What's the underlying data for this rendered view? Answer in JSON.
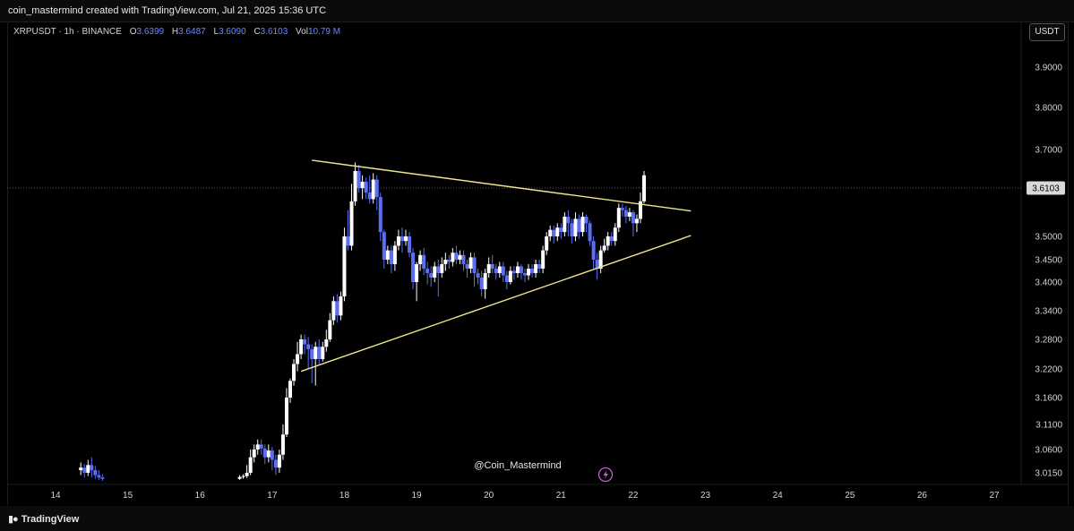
{
  "header": {
    "attribution": "coin_mastermind created with TradingView.com, Jul 21, 2025 15:36 UTC"
  },
  "legend": {
    "symbol": "XRPUSDT · 1h · BINANCE",
    "open_label": "O",
    "open": "3.6399",
    "high_label": "H",
    "high": "3.6487",
    "low_label": "L",
    "low": "3.6090",
    "close_label": "C",
    "close": "3.6103",
    "vol_label": "Vol",
    "vol": "10.79 M"
  },
  "currency_button": "USDT",
  "watermark": "@Coin_Mastermind",
  "footer": {
    "brand": "TradingView",
    "brand_icon": "tradingview-logo-icon"
  },
  "colors": {
    "background": "#000000",
    "up_candle": "#ffffff",
    "down_candle": "#5b6ef5",
    "trendline": "#f0e68c",
    "last_price_label": "#d9d9d9",
    "flash_icon": "#c060d0"
  },
  "chart_data": {
    "type": "candlestick",
    "interval": "1h",
    "x_ticks": [
      "14",
      "15",
      "16",
      "17",
      "18",
      "19",
      "20",
      "21",
      "22",
      "23",
      "24",
      "25",
      "26",
      "27"
    ],
    "y_ticks": [
      "3.0150",
      "3.0600",
      "3.1100",
      "3.1600",
      "3.2200",
      "3.2800",
      "3.3400",
      "3.4000",
      "3.4500",
      "3.5000",
      "3.6103",
      "3.7000",
      "3.8000",
      "3.9000"
    ],
    "last_price": "3.6103",
    "ylim": [
      3.0,
      3.96
    ],
    "xlim": [
      13.85,
      27.4
    ],
    "grid": false,
    "trendlines": [
      {
        "name": "upper",
        "x": [
          17.55,
          22.8
        ],
        "y": [
          3.675,
          3.558
        ]
      },
      {
        "name": "lower",
        "x": [
          17.4,
          22.8
        ],
        "y": [
          3.215,
          3.502
        ]
      }
    ],
    "candles": [
      [
        14.35,
        3.02,
        3.025,
        3.01,
        3.035
      ],
      [
        14.4,
        3.025,
        3.015,
        3.005,
        3.032
      ],
      [
        14.45,
        3.015,
        3.03,
        3.008,
        3.04
      ],
      [
        14.5,
        3.03,
        3.02,
        3.005,
        3.045
      ],
      [
        14.55,
        3.02,
        3.01,
        3.002,
        3.028
      ],
      [
        14.6,
        3.01,
        3.005,
        3.0,
        3.02
      ],
      [
        14.65,
        3.005,
        3.002,
        2.998,
        3.012
      ],
      [
        16.55,
        3.002,
        3.006,
        3.0,
        3.01
      ],
      [
        16.6,
        3.006,
        3.008,
        3.002,
        3.012
      ],
      [
        16.65,
        3.008,
        3.015,
        3.004,
        3.03
      ],
      [
        16.7,
        3.015,
        3.045,
        3.01,
        3.06
      ],
      [
        16.75,
        3.045,
        3.06,
        3.035,
        3.07
      ],
      [
        16.8,
        3.06,
        3.07,
        3.05,
        3.08
      ],
      [
        16.85,
        3.07,
        3.062,
        3.05,
        3.08
      ],
      [
        16.9,
        3.062,
        3.045,
        3.032,
        3.07
      ],
      [
        16.95,
        3.045,
        3.058,
        3.035,
        3.07
      ],
      [
        17.0,
        3.058,
        3.04,
        3.02,
        3.065
      ],
      [
        17.05,
        3.04,
        3.025,
        3.01,
        3.05
      ],
      [
        17.1,
        3.025,
        3.05,
        3.015,
        3.06
      ],
      [
        17.15,
        3.05,
        3.09,
        3.04,
        3.11
      ],
      [
        17.2,
        3.09,
        3.16,
        3.085,
        3.18
      ],
      [
        17.25,
        3.16,
        3.195,
        3.15,
        3.2
      ],
      [
        17.3,
        3.195,
        3.23,
        3.185,
        3.24
      ],
      [
        17.35,
        3.23,
        3.25,
        3.215,
        3.275
      ],
      [
        17.4,
        3.25,
        3.28,
        3.24,
        3.29
      ],
      [
        17.45,
        3.28,
        3.27,
        3.25,
        3.29
      ],
      [
        17.5,
        3.27,
        3.26,
        3.22,
        3.285
      ],
      [
        17.55,
        3.26,
        3.24,
        3.19,
        3.27
      ],
      [
        17.6,
        3.24,
        3.265,
        3.185,
        3.275
      ],
      [
        17.65,
        3.265,
        3.24,
        3.23,
        3.28
      ],
      [
        17.7,
        3.24,
        3.265,
        3.235,
        3.275
      ],
      [
        17.75,
        3.265,
        3.28,
        3.255,
        3.3
      ],
      [
        17.8,
        3.28,
        3.32,
        3.275,
        3.335
      ],
      [
        17.85,
        3.32,
        3.36,
        3.31,
        3.37
      ],
      [
        17.9,
        3.36,
        3.33,
        3.315,
        3.375
      ],
      [
        17.95,
        3.33,
        3.37,
        3.32,
        3.38
      ],
      [
        18.0,
        3.37,
        3.5,
        3.36,
        3.52
      ],
      [
        18.05,
        3.5,
        3.48,
        3.47,
        3.56
      ],
      [
        18.1,
        3.48,
        3.58,
        3.47,
        3.62
      ],
      [
        18.15,
        3.58,
        3.65,
        3.57,
        3.67
      ],
      [
        18.2,
        3.65,
        3.61,
        3.6,
        3.665
      ],
      [
        18.25,
        3.61,
        3.625,
        3.585,
        3.64
      ],
      [
        18.3,
        3.625,
        3.6,
        3.585,
        3.635
      ],
      [
        18.35,
        3.6,
        3.585,
        3.575,
        3.64
      ],
      [
        18.4,
        3.585,
        3.63,
        3.575,
        3.645
      ],
      [
        18.45,
        3.63,
        3.59,
        3.56,
        3.64
      ],
      [
        18.5,
        3.59,
        3.51,
        3.49,
        3.6
      ],
      [
        18.55,
        3.51,
        3.45,
        3.43,
        3.515
      ],
      [
        18.6,
        3.45,
        3.47,
        3.44,
        3.48
      ],
      [
        18.65,
        3.47,
        3.44,
        3.42,
        3.48
      ],
      [
        18.7,
        3.44,
        3.48,
        3.425,
        3.49
      ],
      [
        18.75,
        3.48,
        3.5,
        3.47,
        3.515
      ],
      [
        18.8,
        3.5,
        3.49,
        3.465,
        3.52
      ],
      [
        18.85,
        3.49,
        3.5,
        3.48,
        3.515
      ],
      [
        18.9,
        3.5,
        3.465,
        3.455,
        3.51
      ],
      [
        18.95,
        3.465,
        3.4,
        3.385,
        3.475
      ],
      [
        19.0,
        3.4,
        3.44,
        3.36,
        3.445
      ],
      [
        19.05,
        3.44,
        3.46,
        3.425,
        3.47
      ],
      [
        19.1,
        3.46,
        3.43,
        3.415,
        3.475
      ],
      [
        19.15,
        3.43,
        3.42,
        3.395,
        3.445
      ],
      [
        19.2,
        3.42,
        3.41,
        3.39,
        3.435
      ],
      [
        19.25,
        3.41,
        3.435,
        3.4,
        3.445
      ],
      [
        19.3,
        3.435,
        3.42,
        3.37,
        3.45
      ],
      [
        19.35,
        3.42,
        3.44,
        3.41,
        3.455
      ],
      [
        19.4,
        3.44,
        3.45,
        3.425,
        3.465
      ],
      [
        19.45,
        3.45,
        3.445,
        3.43,
        3.46
      ],
      [
        19.5,
        3.445,
        3.465,
        3.435,
        3.475
      ],
      [
        19.55,
        3.465,
        3.45,
        3.44,
        3.48
      ],
      [
        19.6,
        3.45,
        3.46,
        3.44,
        3.47
      ],
      [
        19.65,
        3.46,
        3.44,
        3.425,
        3.47
      ],
      [
        19.7,
        3.44,
        3.43,
        3.41,
        3.45
      ],
      [
        19.75,
        3.43,
        3.455,
        3.42,
        3.465
      ],
      [
        19.8,
        3.455,
        3.42,
        3.39,
        3.465
      ],
      [
        19.85,
        3.42,
        3.41,
        3.395,
        3.43
      ],
      [
        19.9,
        3.41,
        3.385,
        3.37,
        3.425
      ],
      [
        19.95,
        3.385,
        3.42,
        3.365,
        3.43
      ],
      [
        20.0,
        3.42,
        3.44,
        3.41,
        3.455
      ],
      [
        20.05,
        3.44,
        3.43,
        3.42,
        3.46
      ],
      [
        20.1,
        3.43,
        3.42,
        3.405,
        3.44
      ],
      [
        20.15,
        3.42,
        3.435,
        3.41,
        3.445
      ],
      [
        20.2,
        3.435,
        3.415,
        3.4,
        3.445
      ],
      [
        20.25,
        3.415,
        3.4,
        3.385,
        3.425
      ],
      [
        20.3,
        3.4,
        3.425,
        3.395,
        3.435
      ],
      [
        20.35,
        3.425,
        3.42,
        3.405,
        3.435
      ],
      [
        20.4,
        3.42,
        3.435,
        3.41,
        3.445
      ],
      [
        20.45,
        3.435,
        3.42,
        3.405,
        3.44
      ],
      [
        20.5,
        3.42,
        3.415,
        3.4,
        3.43
      ],
      [
        20.55,
        3.415,
        3.43,
        3.405,
        3.44
      ],
      [
        20.6,
        3.43,
        3.42,
        3.41,
        3.44
      ],
      [
        20.65,
        3.42,
        3.44,
        3.41,
        3.45
      ],
      [
        20.7,
        3.44,
        3.43,
        3.42,
        3.45
      ],
      [
        20.75,
        3.43,
        3.47,
        3.42,
        3.48
      ],
      [
        20.8,
        3.47,
        3.5,
        3.46,
        3.51
      ],
      [
        20.85,
        3.5,
        3.515,
        3.49,
        3.525
      ],
      [
        20.9,
        3.515,
        3.5,
        3.485,
        3.525
      ],
      [
        20.95,
        3.5,
        3.52,
        3.49,
        3.53
      ],
      [
        21.0,
        3.52,
        3.51,
        3.495,
        3.53
      ],
      [
        21.05,
        3.51,
        3.545,
        3.5,
        3.555
      ],
      [
        21.1,
        3.545,
        3.53,
        3.5,
        3.56
      ],
      [
        21.15,
        3.53,
        3.5,
        3.485,
        3.54
      ],
      [
        21.2,
        3.5,
        3.54,
        3.49,
        3.555
      ],
      [
        21.25,
        3.54,
        3.51,
        3.495,
        3.55
      ],
      [
        21.3,
        3.51,
        3.545,
        3.5,
        3.555
      ],
      [
        21.35,
        3.545,
        3.53,
        3.51,
        3.55
      ],
      [
        21.4,
        3.53,
        3.49,
        3.48,
        3.535
      ],
      [
        21.45,
        3.49,
        3.45,
        3.43,
        3.5
      ],
      [
        21.5,
        3.45,
        3.43,
        3.405,
        3.465
      ],
      [
        21.55,
        3.43,
        3.47,
        3.42,
        3.48
      ],
      [
        21.6,
        3.47,
        3.48,
        3.465,
        3.495
      ],
      [
        21.65,
        3.48,
        3.5,
        3.47,
        3.51
      ],
      [
        21.7,
        3.5,
        3.49,
        3.48,
        3.51
      ],
      [
        21.75,
        3.49,
        3.52,
        3.48,
        3.53
      ],
      [
        21.8,
        3.52,
        3.565,
        3.51,
        3.575
      ],
      [
        21.85,
        3.565,
        3.56,
        3.545,
        3.575
      ],
      [
        21.9,
        3.56,
        3.545,
        3.53,
        3.57
      ],
      [
        21.95,
        3.545,
        3.555,
        3.535,
        3.565
      ],
      [
        22.0,
        3.555,
        3.53,
        3.5,
        3.56
      ],
      [
        22.05,
        3.53,
        3.54,
        3.51,
        3.55
      ],
      [
        22.1,
        3.54,
        3.58,
        3.53,
        3.6
      ],
      [
        22.15,
        3.58,
        3.64,
        3.575,
        3.65
      ]
    ]
  }
}
